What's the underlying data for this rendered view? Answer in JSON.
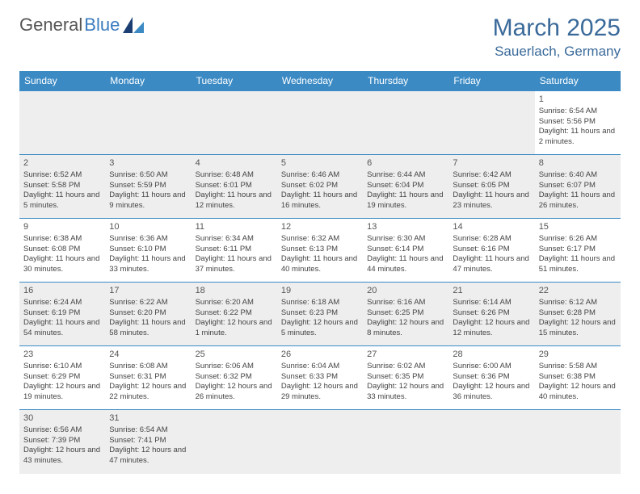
{
  "logo": {
    "text1": "General",
    "text2": "Blue"
  },
  "title": "March 2025",
  "location": "Sauerlach, Germany",
  "colors": {
    "header_bg": "#3b8ac4",
    "header_text": "#ffffff",
    "title_color": "#3a6a9a",
    "border_color": "#3b8ac4",
    "shaded_bg": "#eeeeee"
  },
  "day_headers": [
    "Sunday",
    "Monday",
    "Tuesday",
    "Wednesday",
    "Thursday",
    "Friday",
    "Saturday"
  ],
  "weeks": [
    [
      {
        "n": "",
        "sr": "",
        "ss": "",
        "dl": ""
      },
      {
        "n": "",
        "sr": "",
        "ss": "",
        "dl": ""
      },
      {
        "n": "",
        "sr": "",
        "ss": "",
        "dl": ""
      },
      {
        "n": "",
        "sr": "",
        "ss": "",
        "dl": ""
      },
      {
        "n": "",
        "sr": "",
        "ss": "",
        "dl": ""
      },
      {
        "n": "",
        "sr": "",
        "ss": "",
        "dl": ""
      },
      {
        "n": "1",
        "sr": "Sunrise: 6:54 AM",
        "ss": "Sunset: 5:56 PM",
        "dl": "Daylight: 11 hours and 2 minutes."
      }
    ],
    [
      {
        "n": "2",
        "sr": "Sunrise: 6:52 AM",
        "ss": "Sunset: 5:58 PM",
        "dl": "Daylight: 11 hours and 5 minutes."
      },
      {
        "n": "3",
        "sr": "Sunrise: 6:50 AM",
        "ss": "Sunset: 5:59 PM",
        "dl": "Daylight: 11 hours and 9 minutes."
      },
      {
        "n": "4",
        "sr": "Sunrise: 6:48 AM",
        "ss": "Sunset: 6:01 PM",
        "dl": "Daylight: 11 hours and 12 minutes."
      },
      {
        "n": "5",
        "sr": "Sunrise: 6:46 AM",
        "ss": "Sunset: 6:02 PM",
        "dl": "Daylight: 11 hours and 16 minutes."
      },
      {
        "n": "6",
        "sr": "Sunrise: 6:44 AM",
        "ss": "Sunset: 6:04 PM",
        "dl": "Daylight: 11 hours and 19 minutes."
      },
      {
        "n": "7",
        "sr": "Sunrise: 6:42 AM",
        "ss": "Sunset: 6:05 PM",
        "dl": "Daylight: 11 hours and 23 minutes."
      },
      {
        "n": "8",
        "sr": "Sunrise: 6:40 AM",
        "ss": "Sunset: 6:07 PM",
        "dl": "Daylight: 11 hours and 26 minutes."
      }
    ],
    [
      {
        "n": "9",
        "sr": "Sunrise: 6:38 AM",
        "ss": "Sunset: 6:08 PM",
        "dl": "Daylight: 11 hours and 30 minutes."
      },
      {
        "n": "10",
        "sr": "Sunrise: 6:36 AM",
        "ss": "Sunset: 6:10 PM",
        "dl": "Daylight: 11 hours and 33 minutes."
      },
      {
        "n": "11",
        "sr": "Sunrise: 6:34 AM",
        "ss": "Sunset: 6:11 PM",
        "dl": "Daylight: 11 hours and 37 minutes."
      },
      {
        "n": "12",
        "sr": "Sunrise: 6:32 AM",
        "ss": "Sunset: 6:13 PM",
        "dl": "Daylight: 11 hours and 40 minutes."
      },
      {
        "n": "13",
        "sr": "Sunrise: 6:30 AM",
        "ss": "Sunset: 6:14 PM",
        "dl": "Daylight: 11 hours and 44 minutes."
      },
      {
        "n": "14",
        "sr": "Sunrise: 6:28 AM",
        "ss": "Sunset: 6:16 PM",
        "dl": "Daylight: 11 hours and 47 minutes."
      },
      {
        "n": "15",
        "sr": "Sunrise: 6:26 AM",
        "ss": "Sunset: 6:17 PM",
        "dl": "Daylight: 11 hours and 51 minutes."
      }
    ],
    [
      {
        "n": "16",
        "sr": "Sunrise: 6:24 AM",
        "ss": "Sunset: 6:19 PM",
        "dl": "Daylight: 11 hours and 54 minutes."
      },
      {
        "n": "17",
        "sr": "Sunrise: 6:22 AM",
        "ss": "Sunset: 6:20 PM",
        "dl": "Daylight: 11 hours and 58 minutes."
      },
      {
        "n": "18",
        "sr": "Sunrise: 6:20 AM",
        "ss": "Sunset: 6:22 PM",
        "dl": "Daylight: 12 hours and 1 minute."
      },
      {
        "n": "19",
        "sr": "Sunrise: 6:18 AM",
        "ss": "Sunset: 6:23 PM",
        "dl": "Daylight: 12 hours and 5 minutes."
      },
      {
        "n": "20",
        "sr": "Sunrise: 6:16 AM",
        "ss": "Sunset: 6:25 PM",
        "dl": "Daylight: 12 hours and 8 minutes."
      },
      {
        "n": "21",
        "sr": "Sunrise: 6:14 AM",
        "ss": "Sunset: 6:26 PM",
        "dl": "Daylight: 12 hours and 12 minutes."
      },
      {
        "n": "22",
        "sr": "Sunrise: 6:12 AM",
        "ss": "Sunset: 6:28 PM",
        "dl": "Daylight: 12 hours and 15 minutes."
      }
    ],
    [
      {
        "n": "23",
        "sr": "Sunrise: 6:10 AM",
        "ss": "Sunset: 6:29 PM",
        "dl": "Daylight: 12 hours and 19 minutes."
      },
      {
        "n": "24",
        "sr": "Sunrise: 6:08 AM",
        "ss": "Sunset: 6:31 PM",
        "dl": "Daylight: 12 hours and 22 minutes."
      },
      {
        "n": "25",
        "sr": "Sunrise: 6:06 AM",
        "ss": "Sunset: 6:32 PM",
        "dl": "Daylight: 12 hours and 26 minutes."
      },
      {
        "n": "26",
        "sr": "Sunrise: 6:04 AM",
        "ss": "Sunset: 6:33 PM",
        "dl": "Daylight: 12 hours and 29 minutes."
      },
      {
        "n": "27",
        "sr": "Sunrise: 6:02 AM",
        "ss": "Sunset: 6:35 PM",
        "dl": "Daylight: 12 hours and 33 minutes."
      },
      {
        "n": "28",
        "sr": "Sunrise: 6:00 AM",
        "ss": "Sunset: 6:36 PM",
        "dl": "Daylight: 12 hours and 36 minutes."
      },
      {
        "n": "29",
        "sr": "Sunrise: 5:58 AM",
        "ss": "Sunset: 6:38 PM",
        "dl": "Daylight: 12 hours and 40 minutes."
      }
    ],
    [
      {
        "n": "30",
        "sr": "Sunrise: 6:56 AM",
        "ss": "Sunset: 7:39 PM",
        "dl": "Daylight: 12 hours and 43 minutes."
      },
      {
        "n": "31",
        "sr": "Sunrise: 6:54 AM",
        "ss": "Sunset: 7:41 PM",
        "dl": "Daylight: 12 hours and 47 minutes."
      },
      {
        "n": "",
        "sr": "",
        "ss": "",
        "dl": ""
      },
      {
        "n": "",
        "sr": "",
        "ss": "",
        "dl": ""
      },
      {
        "n": "",
        "sr": "",
        "ss": "",
        "dl": ""
      },
      {
        "n": "",
        "sr": "",
        "ss": "",
        "dl": ""
      },
      {
        "n": "",
        "sr": "",
        "ss": "",
        "dl": ""
      }
    ]
  ]
}
